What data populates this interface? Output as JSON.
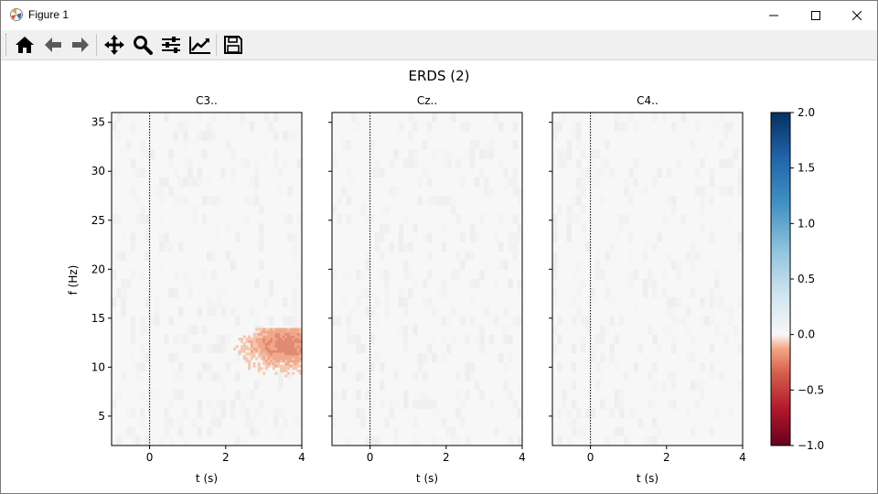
{
  "window": {
    "title": "Figure 1",
    "minimize_glyph": "—",
    "maximize_glyph": "☐",
    "close_glyph": "✕"
  },
  "toolbar": {
    "buttons": [
      {
        "name": "home",
        "icon": "home-icon"
      },
      {
        "name": "back",
        "icon": "arrow-left-icon"
      },
      {
        "name": "forward",
        "icon": "arrow-right-icon"
      },
      {
        "name": "pan",
        "icon": "move-icon"
      },
      {
        "name": "zoom",
        "icon": "magnifier-icon"
      },
      {
        "name": "subplots",
        "icon": "sliders-icon"
      },
      {
        "name": "customize",
        "icon": "line-chart-icon"
      },
      {
        "name": "save",
        "icon": "floppy-disk-icon"
      }
    ]
  },
  "chart_data": {
    "type": "heatmap",
    "title": "ERDS (2)",
    "ylabel": "f (Hz)",
    "panels": [
      {
        "title": "C3..",
        "xlabel": "t (s)"
      },
      {
        "title": "Cz..",
        "xlabel": "t (s)"
      },
      {
        "title": "C4..",
        "xlabel": "t (s)"
      }
    ],
    "xlim": [
      -1,
      4
    ],
    "ylim": [
      2,
      36
    ],
    "x_ticks": [
      "0",
      "2",
      "4"
    ],
    "y_ticks": [
      "5",
      "10",
      "15",
      "20",
      "25",
      "30",
      "35"
    ],
    "event_marker_t": 0,
    "colorbar": {
      "colormap": "RdBu",
      "vmin": -1.0,
      "vmax": 2.0,
      "ticks": [
        "2.0",
        "1.5",
        "1.0",
        "0.5",
        "0.0",
        "−0.5",
        "−1.0"
      ],
      "colors": {
        "min": "#67001f",
        "mid": "#f7f7f7",
        "max": "#053061"
      }
    },
    "significant_clusters": [
      {
        "panel": "C3..",
        "t_range": [
          2.2,
          4.0
        ],
        "f_range": [
          8,
          14
        ],
        "peak_value": -0.5
      }
    ]
  }
}
